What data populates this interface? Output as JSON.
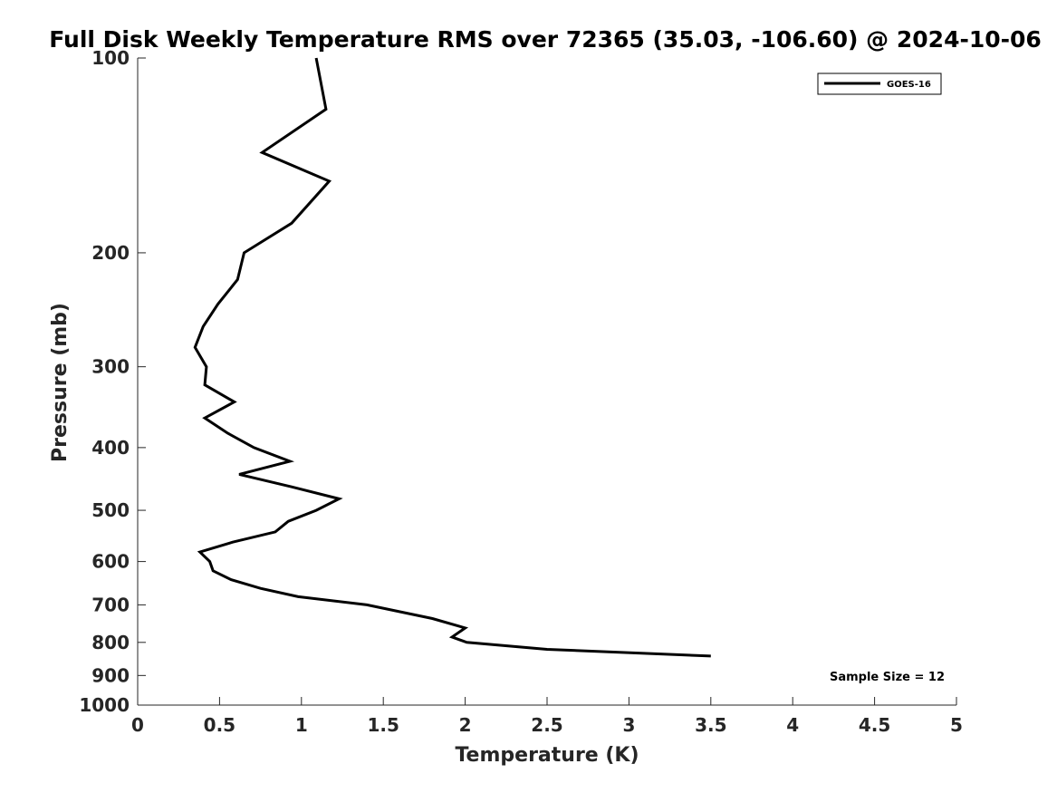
{
  "chart_data": {
    "type": "line",
    "title": "Full Disk Weekly Temperature RMS over 72365 (35.03, -106.60) @ 2024-10-06",
    "xlabel": "Temperature (K)",
    "ylabel": "Pressure (mb)",
    "xlim": [
      0,
      5
    ],
    "ylim": [
      1000,
      100
    ],
    "yscale": "log",
    "y_reversed": true,
    "x_ticks": [
      "0",
      "0.5",
      "1",
      "1.5",
      "2",
      "2.5",
      "3",
      "3.5",
      "4",
      "4.5",
      "5"
    ],
    "y_ticks": [
      "100",
      "200",
      "300",
      "400",
      "500",
      "600",
      "700",
      "800",
      "900",
      "1000"
    ],
    "x_tick_values": [
      0,
      0.5,
      1,
      1.5,
      2,
      2.5,
      3,
      3.5,
      4,
      4.5,
      5
    ],
    "y_tick_values": [
      100,
      200,
      300,
      400,
      500,
      600,
      700,
      800,
      900,
      1000
    ],
    "grid": false,
    "legend_position": "top-right",
    "series": [
      {
        "name": "GOES-16",
        "color": "#000000",
        "points": [
          [
            1.09,
            100
          ],
          [
            1.15,
            120
          ],
          [
            0.76,
            140
          ],
          [
            1.17,
            155
          ],
          [
            0.94,
            180
          ],
          [
            0.65,
            200
          ],
          [
            0.61,
            220
          ],
          [
            0.49,
            240
          ],
          [
            0.4,
            260
          ],
          [
            0.35,
            280
          ],
          [
            0.42,
            300
          ],
          [
            0.41,
            320
          ],
          [
            0.59,
            340
          ],
          [
            0.41,
            360
          ],
          [
            0.55,
            380
          ],
          [
            0.71,
            400
          ],
          [
            0.93,
            420
          ],
          [
            0.62,
            440
          ],
          [
            0.94,
            460
          ],
          [
            1.23,
            480
          ],
          [
            1.09,
            500
          ],
          [
            0.92,
            520
          ],
          [
            0.84,
            540
          ],
          [
            0.58,
            560
          ],
          [
            0.38,
            580
          ],
          [
            0.44,
            600
          ],
          [
            0.46,
            620
          ],
          [
            0.57,
            640
          ],
          [
            0.75,
            660
          ],
          [
            0.98,
            680
          ],
          [
            1.4,
            700
          ],
          [
            1.8,
            735
          ],
          [
            2.0,
            760
          ],
          [
            1.92,
            785
          ],
          [
            2.01,
            800
          ],
          [
            2.5,
            820
          ],
          [
            3.5,
            840
          ]
        ]
      }
    ],
    "annotation": "Sample Size = 12"
  }
}
